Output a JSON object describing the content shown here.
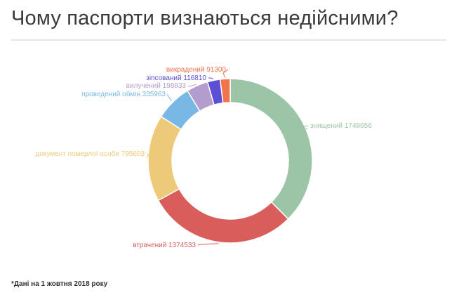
{
  "title": "Чому паспорти визнаються недійсними?",
  "footnote": "*Дані на 1 жовтня 2018 року",
  "chart_data": {
    "type": "pie",
    "donut": true,
    "title": "Чому паспорти визнаються недійсними?",
    "slices": [
      {
        "label": "знищений",
        "value": 1748656,
        "color": "#9cc5a8"
      },
      {
        "label": "втрачений",
        "value": 1374533,
        "color": "#d95d5b"
      },
      {
        "label": "документ померлої особи",
        "value": 795603,
        "color": "#ecca79"
      },
      {
        "label": "проведений обмін",
        "value": 335963,
        "color": "#79b8e4"
      },
      {
        "label": "вилучений",
        "value": 198833,
        "color": "#b39cce"
      },
      {
        "label": "зіпсований",
        "value": 116810,
        "color": "#5b4fd6"
      },
      {
        "label": "викрадений",
        "value": 91300,
        "color": "#f1744d"
      }
    ]
  }
}
